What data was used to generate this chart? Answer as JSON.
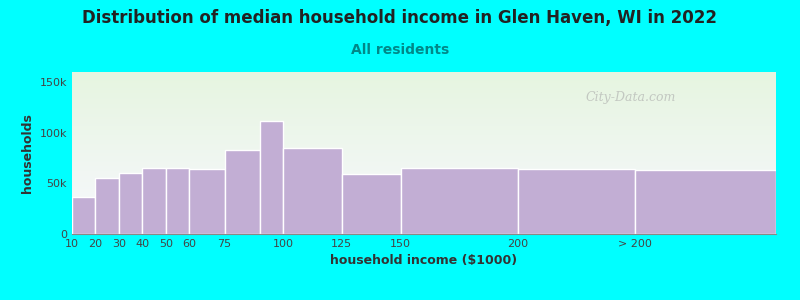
{
  "title": "Distribution of median household income in Glen Haven, WI in 2022",
  "subtitle": "All residents",
  "xlabel": "household income ($1000)",
  "ylabel": "households",
  "background_color": "#00FFFF",
  "plot_bg_gradient_top": "#e6f5e0",
  "plot_bg_gradient_bottom": "#f8f8ff",
  "bar_color": "#c2aed4",
  "bar_edge_color": "#ffffff",
  "watermark": "City-Data.com",
  "bin_edges": [
    10,
    20,
    30,
    40,
    50,
    60,
    75,
    90,
    100,
    125,
    150,
    200,
    250,
    310
  ],
  "xtick_positions": [
    10,
    20,
    30,
    40,
    50,
    60,
    75,
    100,
    125,
    150,
    200,
    250
  ],
  "xtick_labels": [
    "10",
    "20",
    "30",
    "40",
    "50",
    "60",
    "75",
    "100",
    "125",
    "150",
    "200",
    "> 200"
  ],
  "values": [
    37000,
    55000,
    60000,
    65000,
    65000,
    64000,
    83000,
    112000,
    85000,
    59000,
    65000,
    64000,
    63000
  ],
  "ylim": [
    0,
    160000
  ],
  "yticks": [
    0,
    50000,
    100000,
    150000
  ],
  "ytick_labels": [
    "0",
    "50k",
    "100k",
    "150k"
  ],
  "title_fontsize": 12,
  "subtitle_fontsize": 10,
  "subtitle_color": "#008888",
  "axis_label_fontsize": 9,
  "tick_fontsize": 8,
  "xlim": [
    10,
    310
  ]
}
